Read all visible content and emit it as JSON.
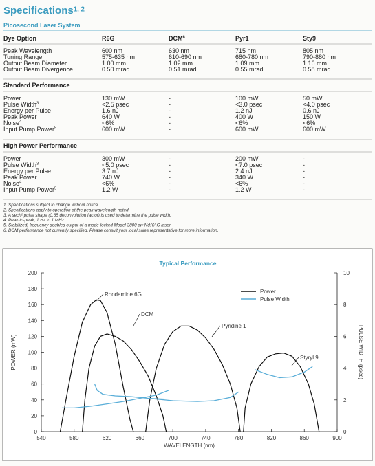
{
  "header": {
    "title": "Specifications",
    "title_sup": "1, 2",
    "subtitle": "Picosecond Laser System"
  },
  "table": {
    "columns": [
      "Dye Option",
      "R6G",
      {
        "text": "DCM",
        "sup": "6"
      },
      "Pyr1",
      "Sty9"
    ],
    "rows": [
      {
        "cells": [
          "Peak Wavelength",
          "600 nm",
          "630 nm",
          "715 nm",
          "805 nm"
        ]
      },
      {
        "cells": [
          "Tuning Range",
          "575-635 nm",
          "610-690 nm",
          "680-780 nm",
          "790-880 nm"
        ]
      },
      {
        "cells": [
          "Output Beam Diameter",
          "1.00 mm",
          "1.02 mm",
          "1.09 mm",
          "1.16 mm"
        ]
      },
      {
        "cells": [
          "Output Beam Divergence",
          "0.50 mrad",
          "0.51 mrad",
          "0.55 mrad",
          "0.58 mrad"
        ]
      }
    ],
    "sections": [
      {
        "title": "Standard Performance",
        "rows": [
          {
            "cells": [
              "Power",
              "130 mW",
              "-",
              "100 mW",
              "50 mW"
            ]
          },
          {
            "cells": [
              "Pulse Width",
              "<2.5 psec",
              "-",
              "<3.0 psec",
              "<4.0 psec"
            ],
            "sup": "3"
          },
          {
            "cells": [
              "Energy per Pulse",
              "1.6 nJ",
              "-",
              "1.2 nJ",
              "0.6 nJ"
            ]
          },
          {
            "cells": [
              "Peak Power",
              "640 W",
              "-",
              "400 W",
              "150 W"
            ]
          },
          {
            "cells": [
              "Noise",
              "<6%",
              "-",
              "<6%",
              "<6%"
            ],
            "sup": "4"
          },
          {
            "cells": [
              "Input Pump Power",
              "600 mW",
              "-",
              "600 mW",
              "600 mW"
            ],
            "sup": "5"
          }
        ]
      },
      {
        "title": "High Power Performance",
        "rows": [
          {
            "cells": [
              "Power",
              "300 mW",
              "-",
              "200 mW",
              "-"
            ]
          },
          {
            "cells": [
              "Pulse Width",
              "<5.0 psec",
              "-",
              "<7.0 psec",
              "-"
            ],
            "sup": "3"
          },
          {
            "cells": [
              "Energy per Pulse",
              "3.7 nJ",
              "-",
              "2.4 nJ",
              "-"
            ]
          },
          {
            "cells": [
              "Peak Power",
              "740 W",
              "-",
              "340 W",
              "-"
            ]
          },
          {
            "cells": [
              "Noise",
              "<6%",
              "-",
              "<6%",
              "-"
            ],
            "sup": "4"
          },
          {
            "cells": [
              "Input Pump Power",
              "1.2 W",
              "-",
              "1.2 W",
              "-"
            ],
            "sup": "5"
          }
        ]
      }
    ]
  },
  "footnotes": [
    "1. Specifications subject to change without notice.",
    "2. Specifications apply to operation at the peak wavelength noted.",
    "3. A sech² pulse shape (0.65 deconvolution factor) is used to determine the pulse width.",
    "4. Peak-to-peak, 1 Hz to 1 MHz.",
    "5. Stabilized, frequency doubled output of a mode-locked Model 3800 cw Nd:YAG laser.",
    "6. DCM performance not currently specified. Please consult your local sales representative for more information."
  ],
  "chart_data": {
    "type": "line",
    "title": "Typical Performance",
    "x_label": "WAVELENGTH (nm)",
    "y_label": "POWER (mW)",
    "y2_label": "PULSE WIDTH (psec)",
    "xlim": [
      540,
      900
    ],
    "xticks": [
      540,
      580,
      620,
      660,
      700,
      740,
      780,
      820,
      860,
      900
    ],
    "ylim": [
      0,
      200
    ],
    "yticks": [
      0,
      20,
      40,
      60,
      80,
      100,
      120,
      140,
      160,
      180,
      200
    ],
    "y2lim": [
      0,
      10
    ],
    "y2ticks": [
      0,
      2,
      4,
      6,
      8,
      10
    ],
    "legend": "top-right",
    "annotations": [
      "Rhodamine 6G",
      "DCM",
      "Pyridine 1",
      "Styryl 9"
    ],
    "series": [
      {
        "name": "Power",
        "color": "#111111",
        "curves": [
          {
            "x": [
              563,
              570,
              580,
              590,
              600,
              607,
              612,
              620,
              630,
              640,
              648,
              652
            ],
            "values": [
              0,
              40,
              95,
              138,
              160,
              166,
              165,
              150,
              110,
              55,
              15,
              0
            ]
          },
          {
            "x": [
              590,
              593,
              598,
              605,
              612,
              620,
              630,
              640,
              650,
              660,
              670,
              680,
              688,
              692
            ],
            "values": [
              0,
              40,
              80,
              108,
              120,
              123,
              120,
              114,
              103,
              88,
              70,
              45,
              20,
              0
            ]
          },
          {
            "x": [
              667,
              672,
              680,
              690,
              700,
              710,
              720,
              730,
              740,
              750,
              760,
              770,
              778,
              782
            ],
            "values": [
              0,
              40,
              80,
              110,
              126,
              133,
              133,
              128,
              118,
              104,
              85,
              60,
              30,
              0
            ]
          },
          {
            "x": [
              786,
              788,
              795,
              805,
              815,
              825,
              835,
              845,
              855,
              865,
              872,
              878
            ],
            "values": [
              0,
              30,
              60,
              82,
              94,
              98,
              99,
              95,
              82,
              60,
              35,
              0
            ]
          }
        ]
      },
      {
        "name": "Pulse Width",
        "color": "#5aaed8",
        "axis": "y2",
        "curves": [
          {
            "x": [
              565,
              580,
              600,
              620,
              640,
              660,
              680,
              695
            ],
            "values": [
              1.5,
              1.5,
              1.6,
              1.75,
              1.9,
              2.1,
              2.3,
              2.6
            ]
          },
          {
            "x": [
              605,
              608,
              615,
              630,
              650,
              670,
              690
            ],
            "values": [
              3.0,
              2.6,
              2.35,
              2.25,
              2.2,
              2.1,
              2.05
            ]
          },
          {
            "x": [
              670,
              700,
              730,
              750,
              770,
              780
            ],
            "values": [
              2.1,
              1.95,
              1.9,
              1.95,
              2.15,
              2.5
            ]
          },
          {
            "x": [
              800,
              815,
              830,
              845,
              860,
              870
            ],
            "values": [
              3.9,
              3.6,
              3.4,
              3.45,
              3.75,
              4.1
            ]
          }
        ]
      }
    ]
  }
}
